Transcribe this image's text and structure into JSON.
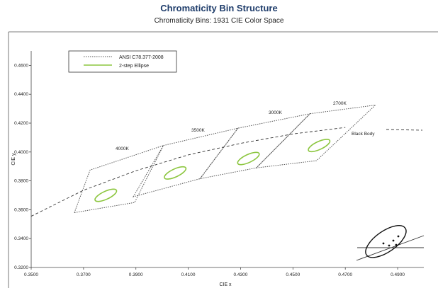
{
  "chart_data": {
    "type": "scatter",
    "title": "Chromaticity Bin Structure",
    "subtitle": "Chromaticity Bins: 1931 CIE Color Space",
    "xlabel": "CIE x",
    "ylabel": "CIE y",
    "xlim": [
      0.35,
      0.5
    ],
    "ylim": [
      0.32,
      0.47
    ],
    "x_ticks": [
      "0.3500",
      "0.3700",
      "0.3900",
      "0.4100",
      "0.4300",
      "0.4500",
      "0.4700",
      "0.4900"
    ],
    "y_ticks": [
      "0.3200",
      "0.3400",
      "0.3600",
      "0.3800",
      "0.4000",
      "0.4200",
      "0.4400",
      "0.4600"
    ],
    "x_tick_values": [
      0.35,
      0.37,
      0.39,
      0.41,
      0.43,
      0.45,
      0.47,
      0.49
    ],
    "y_tick_values": [
      0.32,
      0.34,
      0.36,
      0.38,
      0.4,
      0.42,
      0.44,
      0.46
    ],
    "legend": [
      {
        "label": "ANSI C78.377-2008",
        "style": "dotted",
        "color": "#555555"
      },
      {
        "label": "2-step Ellipse",
        "style": "solid",
        "color": "#8cc63f"
      }
    ],
    "legend_position": "top-left",
    "grid": false,
    "black_body": {
      "label": "Black Body",
      "x": [
        0.35,
        0.37,
        0.39,
        0.41,
        0.43,
        0.45,
        0.47,
        0.4895,
        0.4905
      ],
      "y": [
        0.3555,
        0.3735,
        0.387,
        0.398,
        0.406,
        0.4125,
        0.417,
        0.4205,
        0.415
      ]
    },
    "cct_bins": [
      {
        "label": "4000K",
        "polygon": [
          [
            0.3665,
            0.358
          ],
          [
            0.3725,
            0.3875
          ],
          [
            0.4005,
            0.4045
          ],
          [
            0.3895,
            0.365
          ]
        ],
        "ellipse": {
          "cx": 0.3785,
          "cy": 0.37,
          "rx": 0.0045,
          "ry": 0.005,
          "angle": -25
        }
      },
      {
        "label": "3500K",
        "polygon": [
          [
            0.389,
            0.369
          ],
          [
            0.4005,
            0.4045
          ],
          [
            0.429,
            0.4165
          ],
          [
            0.4145,
            0.3815
          ]
        ],
        "ellipse": {
          "cx": 0.405,
          "cy": 0.3855,
          "rx": 0.0045,
          "ry": 0.005,
          "angle": -25
        }
      },
      {
        "label": "3000K",
        "polygon": [
          [
            0.4145,
            0.3815
          ],
          [
            0.429,
            0.4165
          ],
          [
            0.4565,
            0.4265
          ],
          [
            0.436,
            0.389
          ]
        ],
        "ellipse": {
          "cx": 0.433,
          "cy": 0.3955,
          "rx": 0.0045,
          "ry": 0.005,
          "angle": -25
        }
      },
      {
        "label": "2700K",
        "polygon": [
          [
            0.436,
            0.389
          ],
          [
            0.4565,
            0.4265
          ],
          [
            0.4815,
            0.4325
          ],
          [
            0.459,
            0.394
          ]
        ],
        "ellipse": {
          "cx": 0.46,
          "cy": 0.4045,
          "rx": 0.0045,
          "ry": 0.005,
          "angle": -25
        }
      }
    ],
    "inset_ellipse": {
      "cx": 0.4855,
      "cy": 0.338,
      "rx": 0.009,
      "ry": 0.0085,
      "angle": -35
    }
  }
}
